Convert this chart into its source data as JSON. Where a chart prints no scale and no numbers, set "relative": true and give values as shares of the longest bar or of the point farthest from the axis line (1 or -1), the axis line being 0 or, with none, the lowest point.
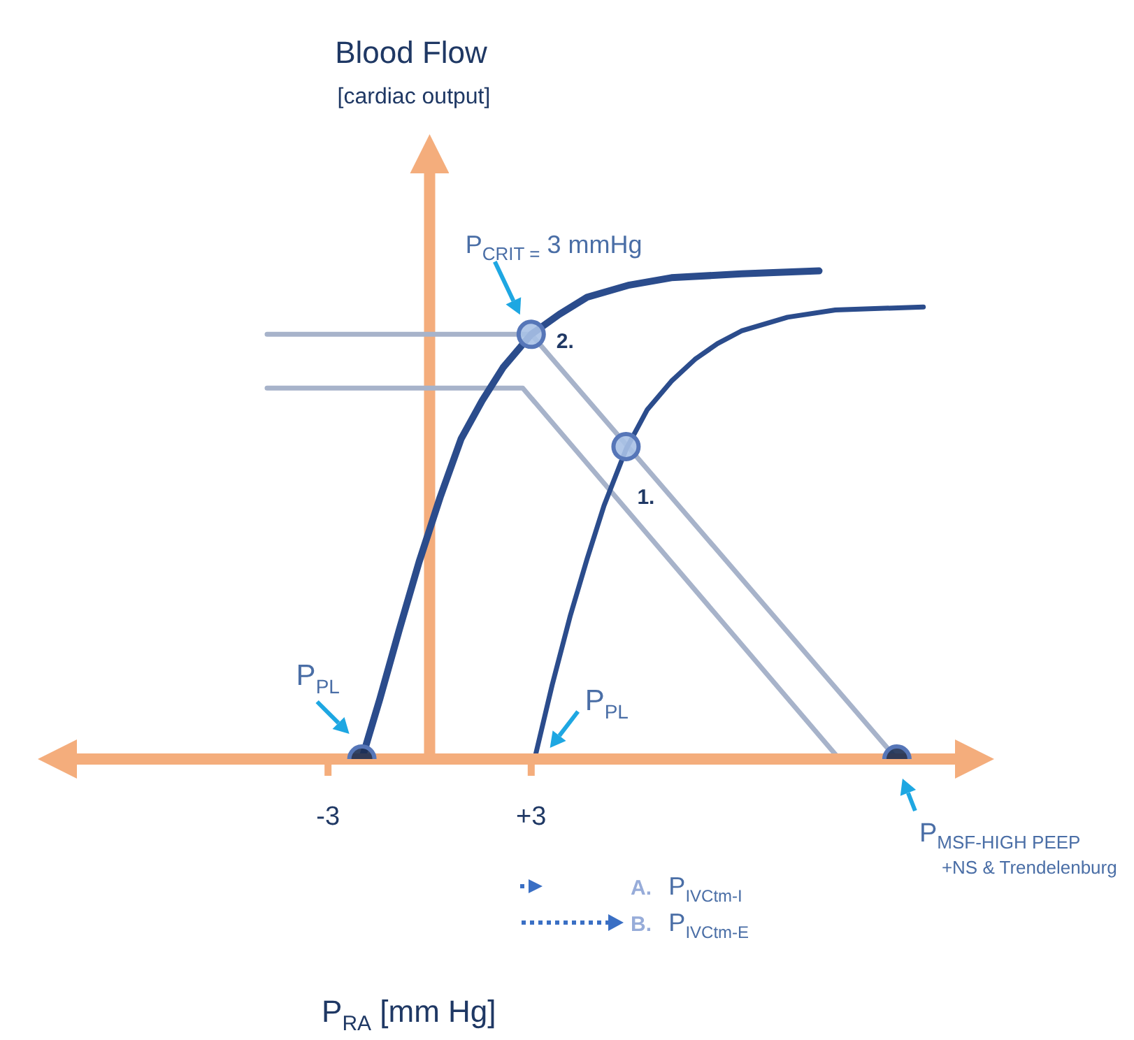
{
  "chart_data": {
    "type": "line",
    "title": "Blood Flow",
    "subtitle": "[cardiac output]",
    "relative": true,
    "xlim": [
      -11.2,
      16.3
    ],
    "xticks": [
      -3,
      {
        "value": 3,
        "label": "+3"
      }
    ],
    "series": [
      {
        "type": "line",
        "color": "#a7b3ca",
        "x": [
          -4.8,
          3.0,
          13.8
        ],
        "values": [
          0.87,
          0.87,
          0
        ]
      },
      {
        "type": "line",
        "color": "#a7b3ca",
        "x": [
          -4.8,
          2.75,
          12.1
        ],
        "values": [
          0.76,
          0.76,
          0
        ]
      },
      {
        "type": "line",
        "color": "#2b4c8c",
        "x": [
          -2.0,
          -1.47,
          -0.89,
          -0.31,
          0.31,
          0.93,
          1.55,
          2.17,
          3.0,
          3.83,
          4.65,
          5.9,
          7.14,
          9.21,
          11.5
        ],
        "values": [
          0,
          0.123,
          0.266,
          0.404,
          0.536,
          0.656,
          0.734,
          0.802,
          0.87,
          0.911,
          0.946,
          0.971,
          0.986,
          0.994,
          1.0
        ]
      },
      {
        "type": "line",
        "color": "#2b4c8c",
        "x": [
          3.1,
          3.62,
          4.16,
          4.65,
          5.15,
          5.81,
          6.43,
          7.14,
          7.84,
          8.5,
          9.21,
          10.57,
          11.98,
          14.58
        ],
        "values": [
          0,
          0.152,
          0.295,
          0.41,
          0.519,
          0.636,
          0.716,
          0.774,
          0.819,
          0.851,
          0.877,
          0.905,
          0.92,
          0.926
        ]
      },
      {
        "type": "scatter",
        "marker": "circle",
        "color": "#5676b8",
        "colors": [
          "#1c2d52",
          "#a9c1e6",
          "#a9c1e6",
          "#1c2d52"
        ],
        "x": [
          -2.0,
          3.0,
          5.8,
          13.8
        ],
        "values": [
          0,
          0.87,
          0.64,
          0
        ]
      }
    ],
    "ref_lines": [
      {
        "axis": "x",
        "value": 0,
        "color": "#f4ad7c"
      }
    ],
    "annotations": [
      {
        "text": "P$_{CRIT =}$ 3 mmHg",
        "x": 3.0,
        "y": 0.87
      },
      {
        "text": "2.",
        "x": 3.0,
        "y": 0.87
      },
      {
        "text": "1.",
        "x": 5.8,
        "y": 0.64
      },
      {
        "text": "P$_{PL}$",
        "x": -2.0,
        "y": 0
      },
      {
        "text": "P$_{PL}$",
        "x": 3.1,
        "y": 0
      },
      {
        "text": "P$_{MSF-HIGH PEEP}$\n+NS & Trendelenburg",
        "x": 13.8,
        "y": 0
      },
      "A. P$_{IVCtm-I}$",
      "B. P$_{IVCtm-E}$",
      "P$_{RA}$ [mm Hg]"
    ]
  }
}
